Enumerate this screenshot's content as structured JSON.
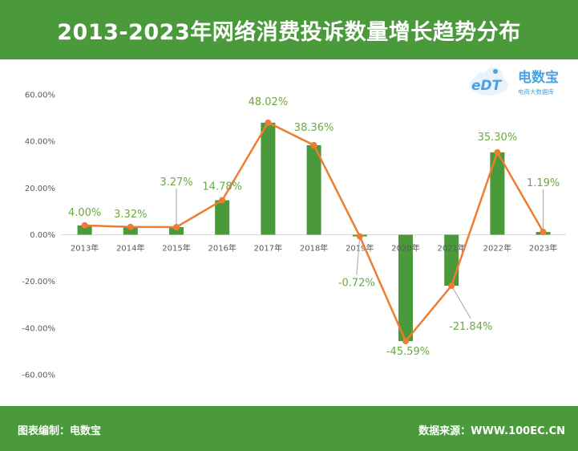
{
  "chart_data": {
    "type": "bar",
    "title": "2013-2023年网络消费投诉数量增长趋势分布",
    "xlabel": "",
    "ylabel": "",
    "categories": [
      "2013年",
      "2014年",
      "2015年",
      "2016年",
      "2017年",
      "2018年",
      "2019年",
      "2020年",
      "2021年",
      "2022年",
      "2023年"
    ],
    "values": [
      4.0,
      3.32,
      3.27,
      14.78,
      48.02,
      38.36,
      -0.72,
      -45.59,
      -21.84,
      35.3,
      1.19
    ],
    "data_labels": [
      "4.00%",
      "3.32%",
      "3.27%",
      "14.78%",
      "48.02%",
      "38.36%",
      "-0.72%",
      "-45.59%",
      "-21.84%",
      "35.30%",
      "1.19%"
    ],
    "overlay": "line",
    "ylim": [
      -60,
      60
    ],
    "y_ticks": [
      60,
      40,
      20,
      0,
      -20,
      -40,
      -60
    ],
    "y_tick_labels": [
      "60.00%",
      "40.00%",
      "20.00%",
      "0.00%",
      "-20.00%",
      "-40.00%",
      "-60.00%"
    ],
    "grid": false,
    "colors": {
      "bar": "#4a9a3c",
      "line": "#ed7d31",
      "label": "#6aaa3e",
      "banner": "#4a9a3c"
    }
  },
  "logo": {
    "mark": "eDT",
    "name": "电数宝",
    "tagline": "电商大数据库"
  },
  "footer": {
    "left": "图表编制：电数宝",
    "right": "数据来源：WWW.100EC.CN"
  }
}
